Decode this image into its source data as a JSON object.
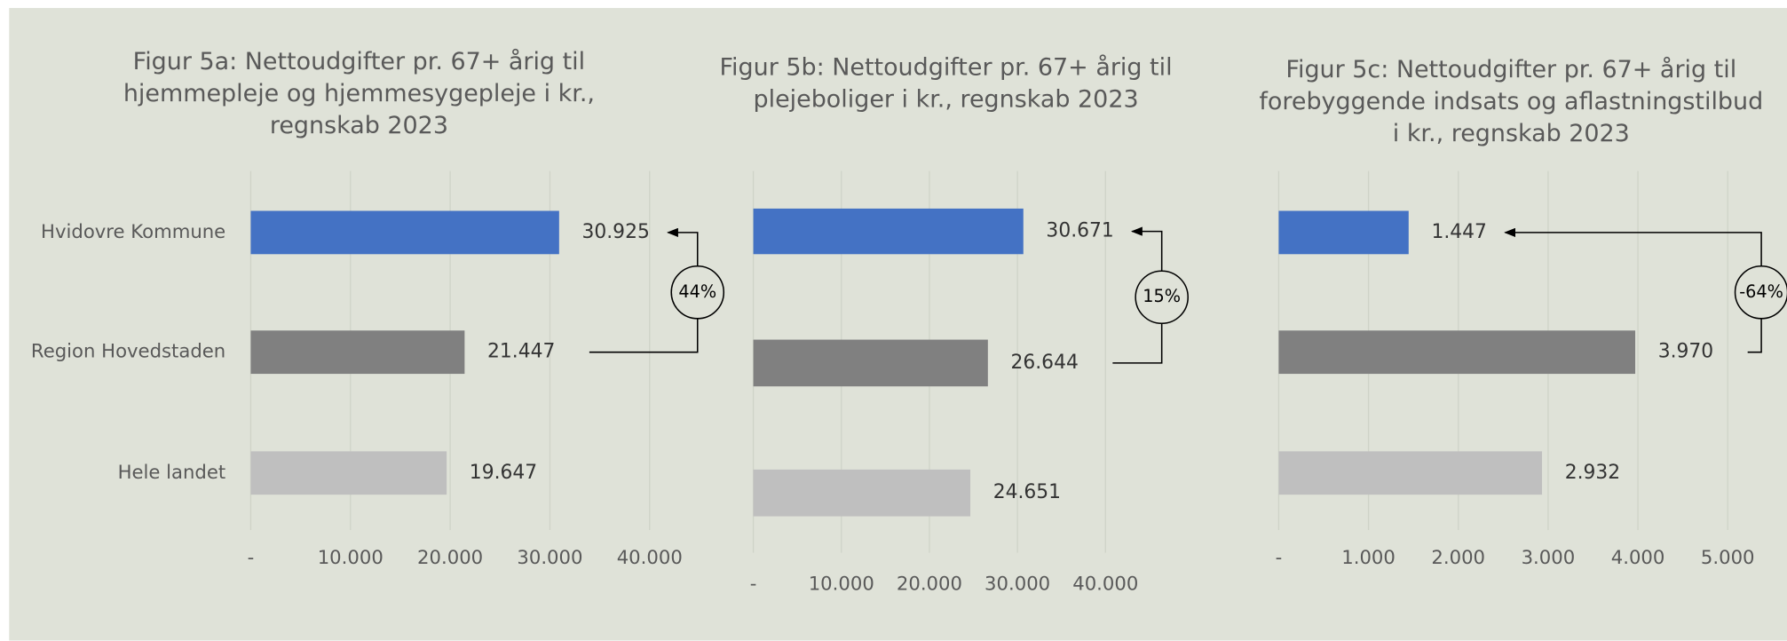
{
  "chart_data": [
    {
      "type": "hbar",
      "title": [
        "Figur 5a: Nettoudgifter pr. 67+ årig til",
        "hjemmepleje og hjemmesygepleje i kr.,",
        "regnskab 2023"
      ],
      "categories": [
        "Hvidovre Kommune",
        "Region Hovedstaden",
        "Hele landet"
      ],
      "values": [
        30925,
        21447,
        19647
      ],
      "value_labels": [
        "30.925",
        "21.447",
        "19.647"
      ],
      "colors": [
        "#4472c4",
        "#808080",
        "#bfbfbf"
      ],
      "xlim": [
        0,
        40000
      ],
      "xticks": [
        {
          "value": 0,
          "label": "-"
        },
        {
          "value": 10000,
          "label": "10.000"
        },
        {
          "value": 20000,
          "label": "20.000"
        },
        {
          "value": 30000,
          "label": "30.000"
        },
        {
          "value": 40000,
          "label": "40.000"
        }
      ],
      "grid": true,
      "annotation": "44%"
    },
    {
      "type": "hbar",
      "title": [
        "Figur 5b: Nettoudgifter pr. 67+ årig til",
        "plejeboliger i kr., regnskab 2023"
      ],
      "categories": [
        null,
        null,
        null
      ],
      "values": [
        30671,
        26644,
        24651
      ],
      "value_labels": [
        "30.671",
        "26.644",
        "24.651"
      ],
      "colors": [
        "#4472c4",
        "#808080",
        "#bfbfbf"
      ],
      "xlim": [
        0,
        40000
      ],
      "xticks": [
        {
          "value": 0,
          "label": "-"
        },
        {
          "value": 10000,
          "label": "10.000"
        },
        {
          "value": 20000,
          "label": "20.000"
        },
        {
          "value": 30000,
          "label": "30.000"
        },
        {
          "value": 40000,
          "label": "40.000"
        }
      ],
      "grid": true,
      "annotation": "15%"
    },
    {
      "type": "hbar",
      "title": [
        "Figur 5c: Nettoudgifter pr. 67+ årig til",
        "forebyggende indsats og aflastningstilbud",
        "i kr., regnskab 2023"
      ],
      "categories": [
        null,
        null,
        null
      ],
      "values": [
        1447,
        3970,
        2932
      ],
      "value_labels": [
        "1.447",
        "3.970",
        "2.932"
      ],
      "colors": [
        "#4472c4",
        "#808080",
        "#bfbfbf"
      ],
      "xlim": [
        0,
        5000
      ],
      "xticks": [
        {
          "value": 0,
          "label": "-"
        },
        {
          "value": 1000,
          "label": "1.000"
        },
        {
          "value": 2000,
          "label": "2.000"
        },
        {
          "value": 3000,
          "label": "3.000"
        },
        {
          "value": 4000,
          "label": "4.000"
        },
        {
          "value": 5000,
          "label": "5.000"
        }
      ],
      "grid": true,
      "annotation": "-64%"
    }
  ]
}
